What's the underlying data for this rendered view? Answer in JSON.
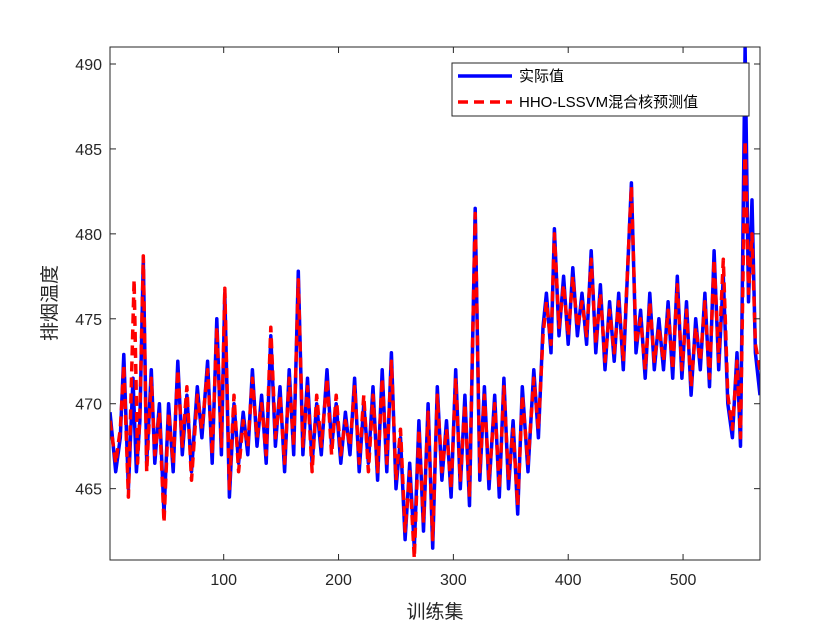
{
  "chart_data": {
    "type": "line",
    "xlabel": "训练集",
    "ylabel": "排烟温度",
    "xlim": [
      1,
      567
    ],
    "ylim": [
      460.8,
      491
    ],
    "xticks": [
      100,
      200,
      300,
      400,
      500
    ],
    "yticks": [
      465,
      470,
      475,
      480,
      485,
      490
    ],
    "grid": false,
    "legend_position": "top-right",
    "colors": {
      "actual": "#0000ff",
      "predicted": "#ff0000"
    },
    "series": [
      {
        "name": "实际值",
        "color": "#0000ff",
        "style": "solid",
        "points": [
          [
            1,
            469.5
          ],
          [
            6,
            466.0
          ],
          [
            10,
            468.0
          ],
          [
            13,
            472.9
          ],
          [
            17,
            465.0
          ],
          [
            21,
            471.5
          ],
          [
            24,
            466.0
          ],
          [
            27,
            469.0
          ],
          [
            30,
            478.5
          ],
          [
            33,
            466.5
          ],
          [
            37,
            472.0
          ],
          [
            40,
            466.5
          ],
          [
            44,
            470.0
          ],
          [
            48,
            463.5
          ],
          [
            52,
            470.0
          ],
          [
            56,
            466.0
          ],
          [
            60,
            472.5
          ],
          [
            64,
            467.0
          ],
          [
            68,
            470.5
          ],
          [
            72,
            466.0
          ],
          [
            77,
            471.0
          ],
          [
            81,
            468.0
          ],
          [
            86,
            472.5
          ],
          [
            90,
            466.5
          ],
          [
            94,
            475.0
          ],
          [
            98,
            467.0
          ],
          [
            101,
            476.5
          ],
          [
            105,
            464.5
          ],
          [
            109,
            470.0
          ],
          [
            113,
            466.5
          ],
          [
            117,
            469.5
          ],
          [
            121,
            467.0
          ],
          [
            125,
            472.0
          ],
          [
            129,
            467.5
          ],
          [
            133,
            470.5
          ],
          [
            137,
            466.5
          ],
          [
            141,
            474.0
          ],
          [
            145,
            467.5
          ],
          [
            149,
            471.0
          ],
          [
            153,
            466.0
          ],
          [
            157,
            472.0
          ],
          [
            161,
            467.0
          ],
          [
            165,
            477.8
          ],
          [
            169,
            467.0
          ],
          [
            173,
            471.5
          ],
          [
            177,
            466.5
          ],
          [
            181,
            470.0
          ],
          [
            185,
            467.0
          ],
          [
            190,
            472.0
          ],
          [
            194,
            467.5
          ],
          [
            198,
            470.0
          ],
          [
            202,
            466.5
          ],
          [
            206,
            469.5
          ],
          [
            210,
            467.0
          ],
          [
            214,
            471.5
          ],
          [
            218,
            466.0
          ],
          [
            222,
            470.0
          ],
          [
            226,
            466.5
          ],
          [
            230,
            471.0
          ],
          [
            234,
            465.5
          ],
          [
            238,
            472.0
          ],
          [
            242,
            466.0
          ],
          [
            246,
            473.0
          ],
          [
            250,
            465.0
          ],
          [
            254,
            468.0
          ],
          [
            258,
            462.0
          ],
          [
            262,
            466.5
          ],
          [
            266,
            461.5
          ],
          [
            270,
            469.0
          ],
          [
            274,
            462.5
          ],
          [
            278,
            470.0
          ],
          [
            282,
            461.5
          ],
          [
            286,
            471.0
          ],
          [
            290,
            465.5
          ],
          [
            294,
            469.0
          ],
          [
            298,
            464.5
          ],
          [
            302,
            472.0
          ],
          [
            306,
            465.0
          ],
          [
            310,
            470.5
          ],
          [
            314,
            464.0
          ],
          [
            319,
            481.5
          ],
          [
            323,
            465.5
          ],
          [
            327,
            471.0
          ],
          [
            331,
            465.0
          ],
          [
            336,
            470.5
          ],
          [
            340,
            464.5
          ],
          [
            344,
            471.5
          ],
          [
            348,
            465.0
          ],
          [
            352,
            469.0
          ],
          [
            356,
            463.5
          ],
          [
            360,
            471.0
          ],
          [
            365,
            466.0
          ],
          [
            370,
            472.0
          ],
          [
            374,
            468.0
          ],
          [
            378,
            474.5
          ],
          [
            381,
            476.5
          ],
          [
            385,
            473.0
          ],
          [
            388,
            480.3
          ],
          [
            392,
            474.0
          ],
          [
            396,
            477.5
          ],
          [
            400,
            473.5
          ],
          [
            404,
            478.0
          ],
          [
            408,
            474.0
          ],
          [
            412,
            476.5
          ],
          [
            416,
            473.5
          ],
          [
            420,
            479.0
          ],
          [
            424,
            473.0
          ],
          [
            428,
            477.0
          ],
          [
            432,
            472.0
          ],
          [
            436,
            476.0
          ],
          [
            440,
            472.5
          ],
          [
            444,
            476.5
          ],
          [
            448,
            472.0
          ],
          [
            455,
            483.0
          ],
          [
            459,
            473.0
          ],
          [
            463,
            475.5
          ],
          [
            467,
            471.5
          ],
          [
            471,
            476.5
          ],
          [
            475,
            472.0
          ],
          [
            479,
            475.0
          ],
          [
            483,
            472.0
          ],
          [
            487,
            476.0
          ],
          [
            491,
            471.5
          ],
          [
            495,
            477.5
          ],
          [
            499,
            471.5
          ],
          [
            503,
            476.0
          ],
          [
            507,
            470.5
          ],
          [
            511,
            475.0
          ],
          [
            515,
            472.0
          ],
          [
            519,
            476.5
          ],
          [
            523,
            471.0
          ],
          [
            527,
            479.0
          ],
          [
            531,
            472.0
          ],
          [
            535,
            477.5
          ],
          [
            539,
            470.0
          ],
          [
            543,
            468.0
          ],
          [
            547,
            473.0
          ],
          [
            550,
            467.5
          ],
          [
            554,
            491.0
          ],
          [
            557,
            476.0
          ],
          [
            560,
            482.0
          ],
          [
            563,
            473.0
          ],
          [
            567,
            470.5
          ]
        ]
      },
      {
        "name": "HHO-LSSVM混合核预测值",
        "color": "#ff0000",
        "style": "dashed",
        "points": [
          [
            1,
            469.0
          ],
          [
            6,
            466.5
          ],
          [
            10,
            468.5
          ],
          [
            13,
            472.3
          ],
          [
            17,
            464.5
          ],
          [
            22,
            477.3
          ],
          [
            25,
            466.5
          ],
          [
            27,
            469.5
          ],
          [
            30,
            478.7
          ],
          [
            33,
            466.0
          ],
          [
            37,
            471.5
          ],
          [
            40,
            467.0
          ],
          [
            44,
            469.5
          ],
          [
            48,
            463.0
          ],
          [
            52,
            469.5
          ],
          [
            56,
            466.5
          ],
          [
            60,
            472.0
          ],
          [
            64,
            467.5
          ],
          [
            68,
            471.0
          ],
          [
            72,
            465.5
          ],
          [
            77,
            470.5
          ],
          [
            81,
            468.5
          ],
          [
            86,
            472.0
          ],
          [
            90,
            467.0
          ],
          [
            94,
            474.5
          ],
          [
            98,
            467.5
          ],
          [
            101,
            476.8
          ],
          [
            105,
            465.0
          ],
          [
            109,
            470.5
          ],
          [
            113,
            466.0
          ],
          [
            117,
            469.0
          ],
          [
            121,
            467.5
          ],
          [
            125,
            471.5
          ],
          [
            129,
            468.0
          ],
          [
            133,
            470.0
          ],
          [
            137,
            467.0
          ],
          [
            141,
            474.5
          ],
          [
            145,
            468.0
          ],
          [
            149,
            470.5
          ],
          [
            153,
            466.5
          ],
          [
            157,
            471.5
          ],
          [
            161,
            467.5
          ],
          [
            165,
            477.3
          ],
          [
            169,
            467.5
          ],
          [
            173,
            471.0
          ],
          [
            177,
            466.0
          ],
          [
            181,
            470.5
          ],
          [
            185,
            467.5
          ],
          [
            190,
            471.5
          ],
          [
            194,
            467.0
          ],
          [
            198,
            470.5
          ],
          [
            202,
            467.0
          ],
          [
            206,
            469.0
          ],
          [
            210,
            467.5
          ],
          [
            214,
            471.0
          ],
          [
            218,
            466.5
          ],
          [
            222,
            470.5
          ],
          [
            226,
            466.0
          ],
          [
            230,
            470.5
          ],
          [
            234,
            466.0
          ],
          [
            238,
            471.5
          ],
          [
            242,
            466.5
          ],
          [
            246,
            472.5
          ],
          [
            250,
            465.5
          ],
          [
            254,
            468.5
          ],
          [
            258,
            462.5
          ],
          [
            262,
            466.0
          ],
          [
            266,
            460.9
          ],
          [
            270,
            468.5
          ],
          [
            274,
            463.0
          ],
          [
            278,
            469.5
          ],
          [
            282,
            462.0
          ],
          [
            286,
            470.5
          ],
          [
            290,
            466.0
          ],
          [
            294,
            468.5
          ],
          [
            298,
            465.0
          ],
          [
            302,
            471.5
          ],
          [
            306,
            465.5
          ],
          [
            310,
            470.0
          ],
          [
            314,
            464.5
          ],
          [
            319,
            481.2
          ],
          [
            323,
            466.0
          ],
          [
            327,
            470.5
          ],
          [
            331,
            465.5
          ],
          [
            336,
            470.0
          ],
          [
            340,
            465.0
          ],
          [
            344,
            471.0
          ],
          [
            348,
            465.5
          ],
          [
            352,
            468.5
          ],
          [
            356,
            464.0
          ],
          [
            360,
            470.5
          ],
          [
            365,
            466.5
          ],
          [
            370,
            471.5
          ],
          [
            374,
            468.5
          ],
          [
            378,
            474.0
          ],
          [
            381,
            476.0
          ],
          [
            385,
            473.5
          ],
          [
            388,
            480.0
          ],
          [
            392,
            474.5
          ],
          [
            396,
            477.0
          ],
          [
            400,
            474.0
          ],
          [
            404,
            477.5
          ],
          [
            408,
            474.5
          ],
          [
            412,
            476.0
          ],
          [
            416,
            474.0
          ],
          [
            420,
            478.5
          ],
          [
            424,
            473.5
          ],
          [
            428,
            476.5
          ],
          [
            432,
            472.5
          ],
          [
            436,
            475.5
          ],
          [
            440,
            473.0
          ],
          [
            444,
            476.0
          ],
          [
            448,
            472.5
          ],
          [
            455,
            482.8
          ],
          [
            459,
            473.5
          ],
          [
            463,
            475.0
          ],
          [
            467,
            472.0
          ],
          [
            471,
            476.0
          ],
          [
            475,
            472.5
          ],
          [
            479,
            474.5
          ],
          [
            483,
            472.5
          ],
          [
            487,
            475.5
          ],
          [
            491,
            472.0
          ],
          [
            495,
            477.0
          ],
          [
            499,
            472.0
          ],
          [
            503,
            475.5
          ],
          [
            507,
            471.0
          ],
          [
            511,
            474.5
          ],
          [
            515,
            472.5
          ],
          [
            519,
            476.0
          ],
          [
            523,
            471.5
          ],
          [
            527,
            478.5
          ],
          [
            531,
            472.5
          ],
          [
            535,
            478.5
          ],
          [
            539,
            470.5
          ],
          [
            543,
            468.5
          ],
          [
            547,
            472.5
          ],
          [
            550,
            468.0
          ],
          [
            554,
            485.5
          ],
          [
            557,
            476.5
          ],
          [
            560,
            480.0
          ],
          [
            563,
            473.5
          ],
          [
            567,
            472.0
          ]
        ]
      }
    ]
  }
}
